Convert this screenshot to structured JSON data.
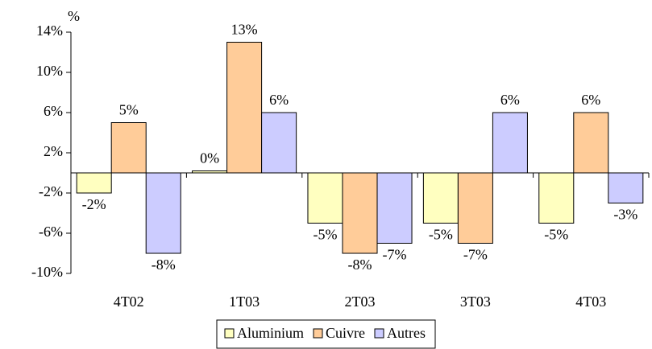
{
  "chart_data": {
    "type": "bar",
    "y_axis_label": "%",
    "categories": [
      "4T02",
      "1T03",
      "2T03",
      "3T03",
      "4T03"
    ],
    "series": [
      {
        "name": "Aluminium",
        "color": "#ffffc0",
        "values": [
          -2,
          0.2,
          -5,
          -5,
          -5
        ],
        "value_labels": [
          "-2%",
          "0%",
          "-5%",
          "-5%",
          "-5%"
        ]
      },
      {
        "name": "Cuivre",
        "color": "#ffcc99",
        "values": [
          5,
          13,
          -8,
          -7,
          6
        ],
        "value_labels": [
          "5%",
          "13%",
          "-8%",
          "-7%",
          "6%"
        ]
      },
      {
        "name": "Autres",
        "color": "#ccccff",
        "values": [
          -8,
          6,
          -7,
          6,
          -3
        ],
        "value_labels": [
          "-8%",
          "6%",
          "-7%",
          "6%",
          "-3%"
        ]
      }
    ],
    "ylim": [
      -10,
      14
    ],
    "yticks": [
      {
        "value": -10,
        "label": "-10%"
      },
      {
        "value": -6,
        "label": "-6%"
      },
      {
        "value": -2,
        "label": "-2%"
      },
      {
        "value": 2,
        "label": "2%"
      },
      {
        "value": 6,
        "label": "6%"
      },
      {
        "value": 10,
        "label": "10%"
      },
      {
        "value": 14,
        "label": "14%"
      }
    ],
    "legend": "bottom"
  }
}
